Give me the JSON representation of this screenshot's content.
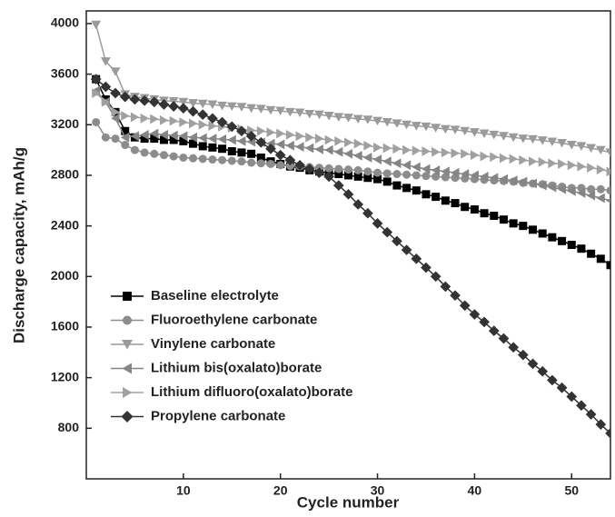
{
  "chart_data": {
    "type": "line",
    "xlabel": "Cycle number",
    "ylabel": "Discharge capacity, mAh/g",
    "xlim": [
      0,
      54
    ],
    "xticks": [
      10,
      20,
      30,
      40,
      50
    ],
    "ylim": [
      400,
      4100
    ],
    "yticks": [
      800,
      1200,
      1600,
      2000,
      2400,
      2800,
      3200,
      3600,
      4000
    ],
    "legend": "lower left",
    "x": [
      1,
      2,
      3,
      4,
      5,
      6,
      7,
      8,
      9,
      10,
      11,
      12,
      13,
      14,
      15,
      16,
      17,
      18,
      19,
      20,
      21,
      22,
      23,
      24,
      25,
      26,
      27,
      28,
      29,
      30,
      31,
      32,
      33,
      34,
      35,
      36,
      37,
      38,
      39,
      40,
      41,
      42,
      43,
      44,
      45,
      46,
      47,
      48,
      49,
      50,
      51,
      52,
      53,
      54
    ],
    "series": [
      {
        "name": "Baseline electrolyte",
        "color": "#000000",
        "marker": "square",
        "values": [
          3560,
          3400,
          3300,
          3150,
          3100,
          3090,
          3090,
          3080,
          3080,
          3070,
          3050,
          3030,
          3020,
          3010,
          2990,
          2980,
          2970,
          2940,
          2910,
          2890,
          2870,
          2860,
          2840,
          2830,
          2820,
          2810,
          2800,
          2790,
          2780,
          2770,
          2750,
          2720,
          2700,
          2680,
          2650,
          2630,
          2600,
          2580,
          2550,
          2530,
          2500,
          2480,
          2450,
          2420,
          2400,
          2370,
          2340,
          2310,
          2280,
          2250,
          2220,
          2180,
          2140,
          2090
        ]
      },
      {
        "name": "Fluoroethylene carbonate",
        "color": "#8c8c8c",
        "marker": "circle",
        "values": [
          3220,
          3100,
          3090,
          3040,
          3000,
          2980,
          2970,
          2960,
          2950,
          2940,
          2935,
          2930,
          2925,
          2920,
          2915,
          2910,
          2900,
          2895,
          2890,
          2880,
          2875,
          2870,
          2865,
          2860,
          2855,
          2850,
          2845,
          2840,
          2830,
          2820,
          2815,
          2810,
          2805,
          2800,
          2795,
          2790,
          2785,
          2780,
          2775,
          2770,
          2765,
          2760,
          2755,
          2750,
          2740,
          2735,
          2730,
          2720,
          2710,
          2700,
          2700,
          2690,
          2690,
          2680
        ]
      },
      {
        "name": "Vinylene carbonate",
        "color": "#9a9a9a",
        "marker": "triangle-down",
        "values": [
          3990,
          3700,
          3620,
          3440,
          3420,
          3410,
          3400,
          3390,
          3385,
          3380,
          3370,
          3365,
          3360,
          3350,
          3345,
          3340,
          3330,
          3325,
          3315,
          3310,
          3300,
          3295,
          3285,
          3280,
          3270,
          3260,
          3255,
          3245,
          3240,
          3230,
          3220,
          3210,
          3200,
          3190,
          3185,
          3175,
          3165,
          3160,
          3150,
          3140,
          3130,
          3120,
          3110,
          3100,
          3090,
          3085,
          3075,
          3065,
          3055,
          3040,
          3030,
          3015,
          3000,
          2980
        ]
      },
      {
        "name": "Lithium bis(oxalato)borate",
        "color": "#858585",
        "marker": "triangle-left",
        "values": [
          3470,
          3380,
          3250,
          3100,
          3110,
          3120,
          3130,
          3120,
          3115,
          3110,
          3100,
          3095,
          3090,
          3085,
          3080,
          3070,
          3065,
          3060,
          3050,
          3045,
          3035,
          3025,
          3015,
          3005,
          3000,
          2985,
          2970,
          2955,
          2940,
          2925,
          2910,
          2895,
          2880,
          2865,
          2850,
          2840,
          2830,
          2820,
          2810,
          2800,
          2790,
          2780,
          2770,
          2760,
          2750,
          2735,
          2720,
          2705,
          2690,
          2675,
          2660,
          2640,
          2620,
          2600
        ]
      },
      {
        "name": "Lithium difluoro(oxalato)borate",
        "color": "#a0a0a0",
        "marker": "triangle-right",
        "values": [
          3450,
          3380,
          3300,
          3270,
          3260,
          3250,
          3245,
          3235,
          3230,
          3220,
          3210,
          3200,
          3190,
          3185,
          3175,
          3165,
          3155,
          3150,
          3140,
          3130,
          3120,
          3110,
          3100,
          3090,
          3080,
          3070,
          3060,
          3050,
          3035,
          3020,
          3015,
          3010,
          3000,
          2995,
          2990,
          2985,
          2980,
          2975,
          2970,
          2960,
          2950,
          2945,
          2935,
          2930,
          2920,
          2910,
          2905,
          2895,
          2890,
          2880,
          2870,
          2860,
          2845,
          2830
        ]
      },
      {
        "name": "Propylene carbonate",
        "color": "#333333",
        "marker": "diamond",
        "values": [
          3560,
          3500,
          3450,
          3420,
          3400,
          3390,
          3380,
          3360,
          3345,
          3330,
          3305,
          3280,
          3250,
          3220,
          3185,
          3150,
          3110,
          3060,
          3010,
          2960,
          2920,
          2880,
          2850,
          2820,
          2790,
          2720,
          2650,
          2570,
          2500,
          2420,
          2350,
          2280,
          2210,
          2140,
          2070,
          2000,
          1920,
          1850,
          1770,
          1700,
          1640,
          1570,
          1510,
          1440,
          1380,
          1310,
          1250,
          1180,
          1120,
          1050,
          980,
          910,
          830,
          760
        ]
      }
    ]
  }
}
